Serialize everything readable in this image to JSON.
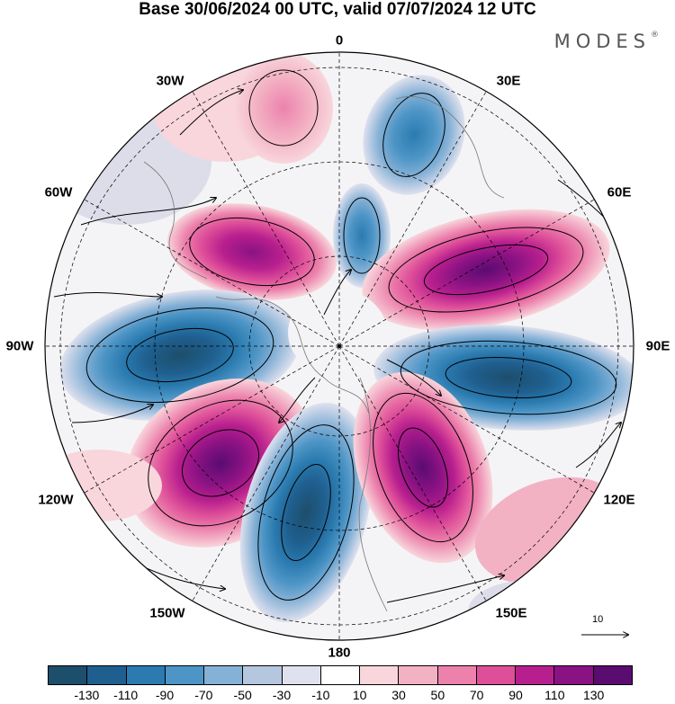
{
  "title": "Base 30/06/2024 00 UTC, valid 07/07/2024 12 UTC",
  "brand": {
    "name": "MODES",
    "mark": "®"
  },
  "longitude_labels": [
    "0",
    "30E",
    "60E",
    "90E",
    "120E",
    "150E",
    "180",
    "150W",
    "120W",
    "90W",
    "60W",
    "30W"
  ],
  "wind_scale": {
    "value": "10",
    "icon": "reference-vector-arrow"
  },
  "colorbar": {
    "colors": [
      "#1d4e6b",
      "#1f5f8f",
      "#2b7bb0",
      "#4d95c6",
      "#86b1d6",
      "#b4c7df",
      "#dfe1ee",
      "#ffffff",
      "#f8d6dc",
      "#f3b1c4",
      "#ec82ac",
      "#de4f99",
      "#b81f8e",
      "#8a1283",
      "#5a0c70"
    ],
    "tick_labels": [
      "-130",
      "-110",
      "-90",
      "-70",
      "-50",
      "-30",
      "-10",
      "10",
      "30",
      "50",
      "70",
      "90",
      "110",
      "130"
    ]
  }
}
